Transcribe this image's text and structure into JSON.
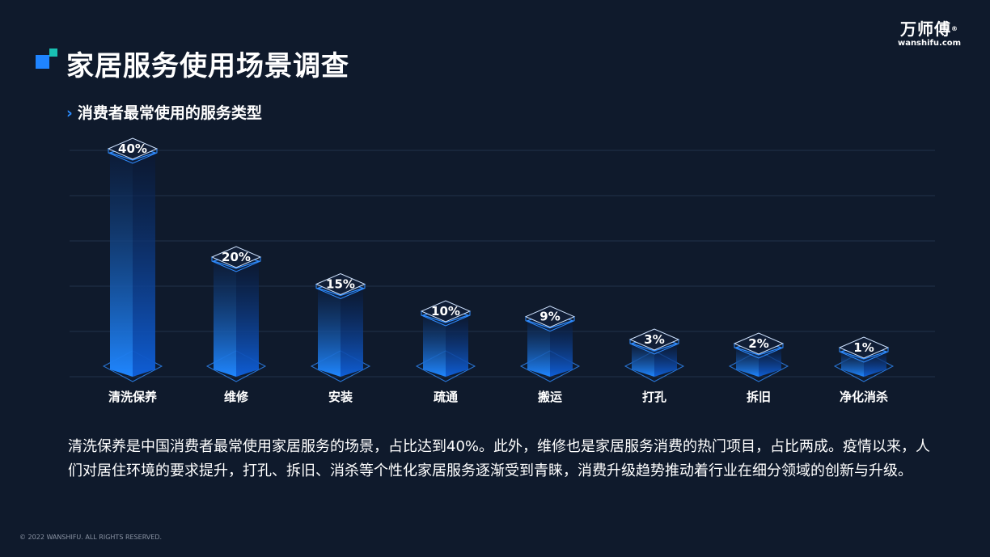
{
  "header": {
    "title": "家居服务使用场景调查",
    "subtitle": "消费者最常使用的服务类型",
    "subtitle_icon": "chevron-right-icon"
  },
  "logo": {
    "name": "万师傅",
    "mark": "®",
    "domain": "wanshifu.com"
  },
  "chart_data": {
    "type": "bar",
    "categories": [
      "清洗保养",
      "维修",
      "安装",
      "疏通",
      "搬运",
      "打孔",
      "拆旧",
      "净化消杀"
    ],
    "values": [
      40,
      20,
      15,
      10,
      9,
      3,
      2,
      1
    ],
    "value_labels": [
      "40%",
      "20%",
      "15%",
      "10%",
      "9%",
      "3%",
      "2%",
      "1%"
    ],
    "unit": "%",
    "grid": true,
    "colors": {
      "bar_top": "#0a1f45",
      "bar_bottom": "#1f86ff",
      "edge": "#2f8cff",
      "grid": "#22314a",
      "background": "#0f1a2c"
    }
  },
  "description": "清洗保养是中国消费者最常使用家居服务的场景，占比达到40%。此外，维修也是家居服务消费的热门项目，占比两成。疫情以来，人们对居住环境的要求提升，打孔、拆旧、消杀等个性化家居服务逐渐受到青睐，消费升级趋势推动着行业在细分领域的创新与升级。",
  "footer": {
    "copyright": "© 2022 WANSHIFU. ALL RIGHTS RESERVED."
  }
}
